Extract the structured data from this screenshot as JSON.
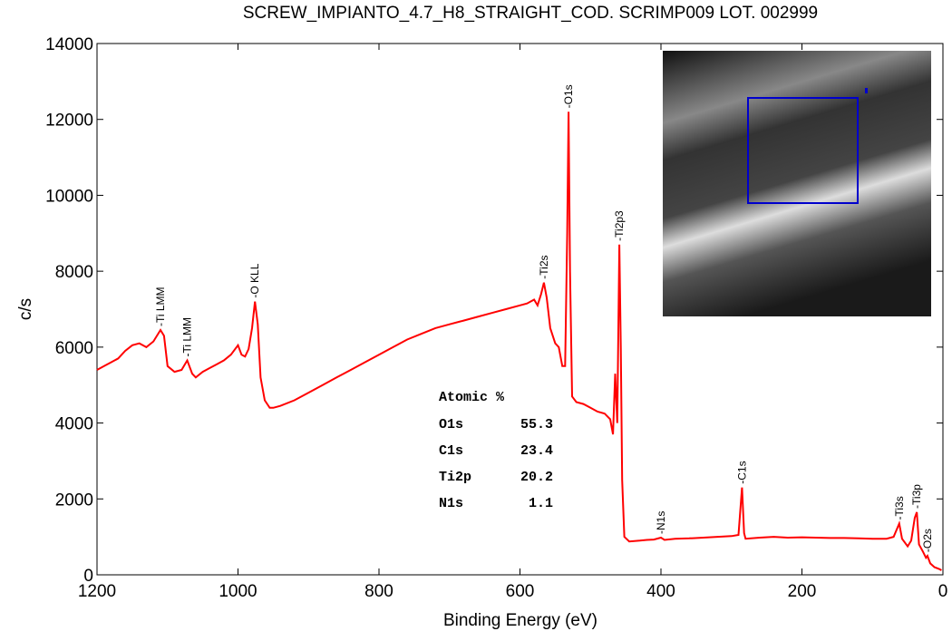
{
  "chart_data": {
    "type": "line",
    "title": "SCREW_IMPIANTO_4.7_H8_STRAIGHT_COD. SCRIMP009 LOT. 002999",
    "x_label": "Binding Energy (eV)",
    "y_label": "c/s",
    "color": "#ff0000",
    "x": [
      1200,
      1190,
      1180,
      1170,
      1160,
      1150,
      1140,
      1130,
      1120,
      1110,
      1105,
      1100,
      1090,
      1080,
      1072,
      1065,
      1060,
      1050,
      1040,
      1030,
      1020,
      1010,
      1000,
      995,
      990,
      985,
      980,
      976,
      972,
      968,
      962,
      955,
      950,
      940,
      920,
      900,
      880,
      860,
      840,
      820,
      800,
      780,
      760,
      740,
      720,
      700,
      680,
      660,
      640,
      620,
      600,
      590,
      580,
      575,
      570,
      566,
      562,
      557,
      550,
      545,
      540,
      536,
      533,
      531,
      529,
      526,
      520,
      510,
      500,
      490,
      480,
      472,
      468,
      465,
      462,
      459,
      457,
      455,
      452,
      445,
      430,
      420,
      410,
      400,
      395,
      380,
      360,
      340,
      320,
      300,
      290,
      285,
      282,
      280,
      260,
      240,
      220,
      200,
      180,
      160,
      140,
      120,
      100,
      80,
      70,
      62,
      58,
      50,
      45,
      40,
      37,
      34,
      28,
      24,
      22,
      18,
      12,
      5,
      2
    ],
    "values": [
      5400,
      5500,
      5600,
      5700,
      5900,
      6050,
      6100,
      6000,
      6150,
      6450,
      6300,
      5500,
      5350,
      5400,
      5650,
      5300,
      5200,
      5350,
      5450,
      5550,
      5650,
      5800,
      6050,
      5800,
      5750,
      5950,
      6500,
      7200,
      6600,
      5200,
      4600,
      4400,
      4400,
      4450,
      4600,
      4800,
      5000,
      5200,
      5400,
      5600,
      5800,
      6000,
      6200,
      6350,
      6500,
      6600,
      6700,
      6800,
      6900,
      7000,
      7100,
      7150,
      7250,
      7100,
      7400,
      7700,
      7300,
      6500,
      6100,
      6000,
      5500,
      5500,
      9000,
      12200,
      8000,
      4700,
      4550,
      4500,
      4400,
      4300,
      4250,
      4100,
      3700,
      5300,
      4000,
      8700,
      6000,
      2500,
      1000,
      880,
      900,
      920,
      930,
      980,
      920,
      950,
      960,
      980,
      1000,
      1020,
      1050,
      2300,
      1100,
      950,
      980,
      1000,
      980,
      990,
      980,
      970,
      970,
      960,
      950,
      950,
      1000,
      1350,
      950,
      750,
      900,
      1500,
      1650,
      800,
      600,
      450,
      500,
      300,
      200,
      150,
      120
    ],
    "xlim": [
      1200,
      0
    ],
    "ylim": [
      0,
      14000
    ],
    "xticks": [
      1200,
      1000,
      800,
      600,
      400,
      200,
      0
    ],
    "yticks": [
      0,
      2000,
      4000,
      6000,
      8000,
      10000,
      12000,
      14000
    ],
    "annotations": [
      {
        "text": "-Ti LMM",
        "x": 1110
      },
      {
        "text": "-Ti LMM",
        "x": 1072
      },
      {
        "text": "-O KLL",
        "x": 976
      },
      {
        "text": "-Ti2s",
        "x": 566
      },
      {
        "text": "-O1s",
        "x": 531
      },
      {
        "text": "-Ti2p3",
        "x": 459
      },
      {
        "text": "-N1s",
        "x": 400
      },
      {
        "text": "-C1s",
        "x": 285
      },
      {
        "text": "-Ti3s",
        "x": 62
      },
      {
        "text": "-Ti3p",
        "x": 37
      },
      {
        "text": "-O2s",
        "x": 22
      }
    ],
    "atomic_table": {
      "title": "Atomic %",
      "rows": [
        [
          "O1s",
          55.3
        ],
        [
          "C1s",
          23.4
        ],
        [
          "Ti2p",
          20.2
        ],
        [
          "N1s",
          1.1
        ]
      ]
    }
  }
}
